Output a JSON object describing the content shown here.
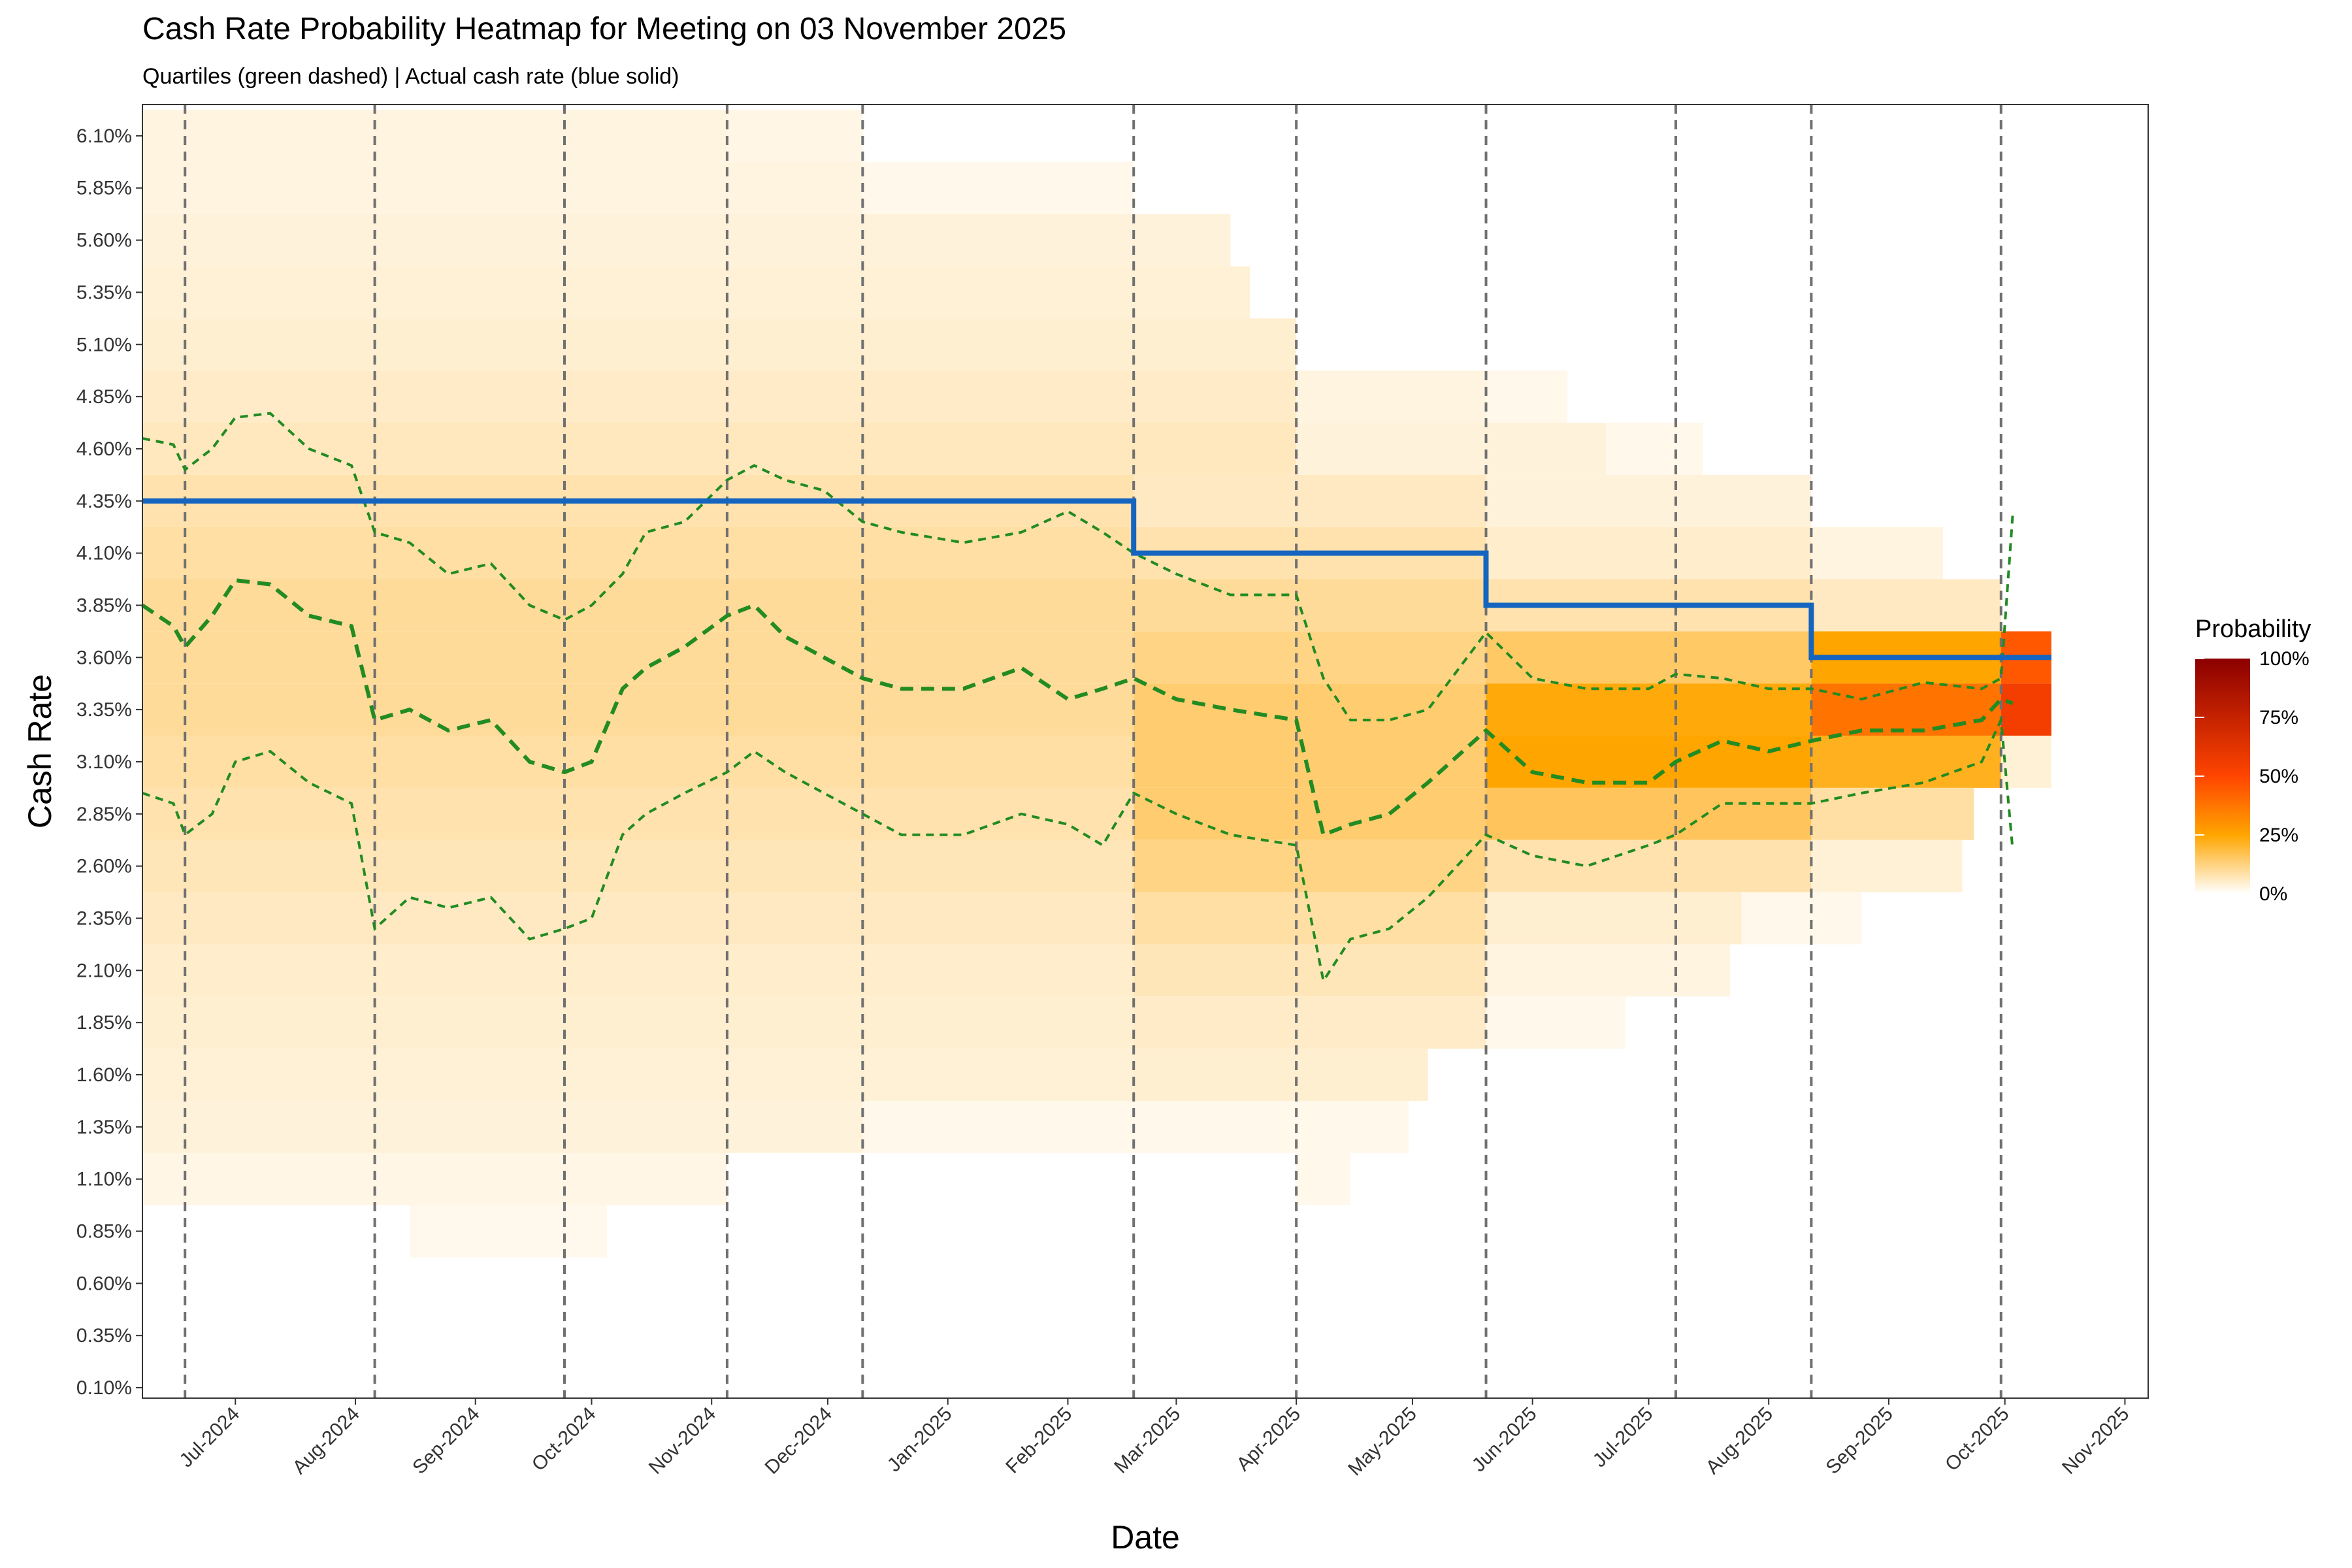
{
  "chart_data": {
    "type": "heatmap",
    "title": "Cash Rate Probability Heatmap for Meeting on 03 November 2025",
    "subtitle": "Quartiles (green dashed) | Actual cash rate (blue solid)",
    "xlabel": "Date",
    "ylabel": "Cash Rate",
    "x_range": [
      "2024-06-07",
      "2025-11-07"
    ],
    "y_range": [
      0.05,
      6.25
    ],
    "y_ticks": [
      "0.10%",
      "0.35%",
      "0.60%",
      "0.85%",
      "1.10%",
      "1.35%",
      "1.60%",
      "1.85%",
      "2.10%",
      "2.35%",
      "2.60%",
      "2.85%",
      "3.10%",
      "3.35%",
      "3.60%",
      "3.85%",
      "4.10%",
      "4.35%",
      "4.60%",
      "4.85%",
      "5.10%",
      "5.35%",
      "5.60%",
      "5.85%",
      "6.10%"
    ],
    "y_tick_values": [
      0.1,
      0.35,
      0.6,
      0.85,
      1.1,
      1.35,
      1.6,
      1.85,
      2.1,
      2.35,
      2.6,
      2.85,
      3.1,
      3.35,
      3.6,
      3.85,
      4.1,
      4.35,
      4.6,
      4.85,
      5.1,
      5.35,
      5.6,
      5.85,
      6.1
    ],
    "x_ticks": [
      {
        "label": "Jul-2024",
        "date": "2024-07-01"
      },
      {
        "label": "Aug-2024",
        "date": "2024-08-01"
      },
      {
        "label": "Sep-2024",
        "date": "2024-09-01"
      },
      {
        "label": "Oct-2024",
        "date": "2024-10-01"
      },
      {
        "label": "Nov-2024",
        "date": "2024-11-01"
      },
      {
        "label": "Dec-2024",
        "date": "2024-12-01"
      },
      {
        "label": "Jan-2025",
        "date": "2025-01-01"
      },
      {
        "label": "Feb-2025",
        "date": "2025-02-01"
      },
      {
        "label": "Mar-2025",
        "date": "2025-03-01"
      },
      {
        "label": "Apr-2025",
        "date": "2025-04-01"
      },
      {
        "label": "May-2025",
        "date": "2025-05-01"
      },
      {
        "label": "Jun-2025",
        "date": "2025-06-01"
      },
      {
        "label": "Jul-2025",
        "date": "2025-07-01"
      },
      {
        "label": "Aug-2025",
        "date": "2025-08-01"
      },
      {
        "label": "Sep-2025",
        "date": "2025-09-01"
      },
      {
        "label": "Oct-2025",
        "date": "2025-10-01"
      },
      {
        "label": "Nov-2025",
        "date": "2025-11-01"
      }
    ],
    "meeting_dates": [
      "2024-06-18",
      "2024-08-06",
      "2024-09-24",
      "2024-11-05",
      "2024-12-10",
      "2025-02-18",
      "2025-04-01",
      "2025-05-20",
      "2025-07-08",
      "2025-08-12",
      "2025-09-30"
    ],
    "actual_cash_rate": {
      "name": "Actual cash rate",
      "color": "#1565C0",
      "steps": [
        {
          "date": "2024-06-07",
          "rate": 4.35
        },
        {
          "date": "2025-02-18",
          "rate": 4.1
        },
        {
          "date": "2025-05-20",
          "rate": 3.85
        },
        {
          "date": "2025-08-12",
          "rate": 3.6
        },
        {
          "date": "2025-10-03",
          "rate": 3.6
        }
      ]
    },
    "quartiles": {
      "color": "#228B22",
      "dates": [
        "2024-06-07",
        "2024-06-15",
        "2024-06-18",
        "2024-06-25",
        "2024-07-01",
        "2024-07-10",
        "2024-07-20",
        "2024-07-31",
        "2024-08-06",
        "2024-08-15",
        "2024-08-25",
        "2024-09-05",
        "2024-09-15",
        "2024-09-24",
        "2024-10-01",
        "2024-10-09",
        "2024-10-15",
        "2024-10-25",
        "2024-11-05",
        "2024-11-12",
        "2024-11-20",
        "2024-11-30",
        "2024-12-10",
        "2024-12-20",
        "2025-01-05",
        "2025-01-20",
        "2025-02-01",
        "2025-02-10",
        "2025-02-18",
        "2025-03-01",
        "2025-03-15",
        "2025-04-01",
        "2025-04-08",
        "2025-04-15",
        "2025-04-25",
        "2025-05-05",
        "2025-05-20",
        "2025-06-01",
        "2025-06-15",
        "2025-07-01",
        "2025-07-08",
        "2025-07-20",
        "2025-08-01",
        "2025-08-12",
        "2025-08-25",
        "2025-09-10",
        "2025-09-25",
        "2025-09-30",
        "2025-10-03"
      ],
      "upper": [
        4.65,
        4.62,
        4.5,
        4.6,
        4.75,
        4.77,
        4.6,
        4.52,
        4.2,
        4.15,
        4.0,
        4.05,
        3.85,
        3.78,
        3.85,
        4.0,
        4.2,
        4.25,
        4.45,
        4.52,
        4.45,
        4.4,
        4.25,
        4.2,
        4.15,
        4.2,
        4.3,
        4.2,
        4.1,
        4.0,
        3.9,
        3.9,
        3.5,
        3.3,
        3.3,
        3.35,
        3.72,
        3.5,
        3.45,
        3.45,
        3.52,
        3.5,
        3.45,
        3.45,
        3.4,
        3.48,
        3.45,
        3.5,
        4.28
      ],
      "median": [
        3.85,
        3.75,
        3.65,
        3.8,
        3.97,
        3.95,
        3.8,
        3.75,
        3.3,
        3.35,
        3.25,
        3.3,
        3.1,
        3.05,
        3.1,
        3.45,
        3.55,
        3.65,
        3.8,
        3.85,
        3.7,
        3.6,
        3.5,
        3.45,
        3.45,
        3.55,
        3.4,
        3.45,
        3.5,
        3.4,
        3.35,
        3.3,
        2.75,
        2.8,
        2.85,
        3.0,
        3.25,
        3.05,
        3.0,
        3.0,
        3.1,
        3.2,
        3.15,
        3.2,
        3.25,
        3.25,
        3.3,
        3.4,
        3.38
      ],
      "lower": [
        2.95,
        2.9,
        2.75,
        2.85,
        3.1,
        3.15,
        3.0,
        2.9,
        2.3,
        2.45,
        2.4,
        2.45,
        2.25,
        2.3,
        2.35,
        2.75,
        2.85,
        2.95,
        3.05,
        3.15,
        3.05,
        2.95,
        2.85,
        2.75,
        2.75,
        2.85,
        2.8,
        2.7,
        2.95,
        2.85,
        2.75,
        2.7,
        2.05,
        2.25,
        2.3,
        2.45,
        2.75,
        2.65,
        2.6,
        2.7,
        2.75,
        2.9,
        2.9,
        2.9,
        2.95,
        3.0,
        3.1,
        3.3,
        2.68
      ]
    },
    "heatmap_rows": [
      {
        "rate": 6.1,
        "ranges": [
          {
            "start": "2024-06-07",
            "end": "2024-11-05",
            "p": 0.03
          },
          {
            "start": "2024-11-05",
            "end": "2024-12-10",
            "p": 0.025
          }
        ]
      },
      {
        "rate": 5.85,
        "ranges": [
          {
            "start": "2024-06-07",
            "end": "2024-12-10",
            "p": 0.03
          },
          {
            "start": "2024-12-10",
            "end": "2025-02-18",
            "p": 0.02
          }
        ]
      },
      {
        "rate": 5.6,
        "ranges": [
          {
            "start": "2024-06-07",
            "end": "2025-03-15",
            "p": 0.035
          }
        ]
      },
      {
        "rate": 5.35,
        "ranges": [
          {
            "start": "2024-06-07",
            "end": "2025-03-20",
            "p": 0.04
          }
        ]
      },
      {
        "rate": 5.1,
        "ranges": [
          {
            "start": "2024-06-07",
            "end": "2025-04-01",
            "p": 0.045
          }
        ]
      },
      {
        "rate": 4.85,
        "ranges": [
          {
            "start": "2024-06-07",
            "end": "2025-04-01",
            "p": 0.055
          },
          {
            "start": "2025-04-01",
            "end": "2025-05-20",
            "p": 0.03
          },
          {
            "start": "2025-05-20",
            "end": "2025-06-10",
            "p": 0.02
          }
        ]
      },
      {
        "rate": 4.6,
        "ranges": [
          {
            "start": "2024-06-07",
            "end": "2025-04-01",
            "p": 0.065
          },
          {
            "start": "2025-04-01",
            "end": "2025-06-20",
            "p": 0.035
          },
          {
            "start": "2025-06-20",
            "end": "2025-07-15",
            "p": 0.02
          }
        ]
      },
      {
        "rate": 4.35,
        "ranges": [
          {
            "start": "2024-06-07",
            "end": "2025-02-18",
            "p": 0.08
          },
          {
            "start": "2025-02-18",
            "end": "2025-05-20",
            "p": 0.06
          },
          {
            "start": "2025-05-20",
            "end": "2025-08-12",
            "p": 0.035
          }
        ]
      },
      {
        "rate": 4.1,
        "ranges": [
          {
            "start": "2024-06-07",
            "end": "2025-02-18",
            "p": 0.09
          },
          {
            "start": "2025-02-18",
            "end": "2025-05-20",
            "p": 0.08
          },
          {
            "start": "2025-05-20",
            "end": "2025-08-12",
            "p": 0.05
          },
          {
            "start": "2025-08-12",
            "end": "2025-09-15",
            "p": 0.03
          }
        ]
      },
      {
        "rate": 3.85,
        "ranges": [
          {
            "start": "2024-06-07",
            "end": "2025-02-18",
            "p": 0.1
          },
          {
            "start": "2025-02-18",
            "end": "2025-05-20",
            "p": 0.1
          },
          {
            "start": "2025-05-20",
            "end": "2025-08-12",
            "p": 0.08
          },
          {
            "start": "2025-08-12",
            "end": "2025-09-30",
            "p": 0.06
          }
        ]
      },
      {
        "rate": 3.6,
        "ranges": [
          {
            "start": "2024-06-07",
            "end": "2025-02-18",
            "p": 0.1
          },
          {
            "start": "2025-02-18",
            "end": "2025-05-20",
            "p": 0.12
          },
          {
            "start": "2025-05-20",
            "end": "2025-08-12",
            "p": 0.15
          },
          {
            "start": "2025-08-12",
            "end": "2025-09-30",
            "p": 0.25
          },
          {
            "start": "2025-09-30",
            "end": "2025-10-13",
            "p": 0.45
          }
        ]
      },
      {
        "rate": 3.35,
        "ranges": [
          {
            "start": "2024-06-07",
            "end": "2025-02-18",
            "p": 0.1
          },
          {
            "start": "2025-02-18",
            "end": "2025-05-20",
            "p": 0.14
          },
          {
            "start": "2025-05-20",
            "end": "2025-08-12",
            "p": 0.24
          },
          {
            "start": "2025-08-12",
            "end": "2025-09-30",
            "p": 0.38
          },
          {
            "start": "2025-09-30",
            "end": "2025-10-13",
            "p": 0.55
          }
        ]
      },
      {
        "rate": 3.1,
        "ranges": [
          {
            "start": "2024-06-07",
            "end": "2025-02-18",
            "p": 0.09
          },
          {
            "start": "2025-02-18",
            "end": "2025-05-20",
            "p": 0.14
          },
          {
            "start": "2025-05-20",
            "end": "2025-08-12",
            "p": 0.25
          },
          {
            "start": "2025-08-12",
            "end": "2025-09-30",
            "p": 0.22
          },
          {
            "start": "2025-09-30",
            "end": "2025-10-13",
            "p": 0.04
          }
        ]
      },
      {
        "rate": 2.85,
        "ranges": [
          {
            "start": "2024-06-07",
            "end": "2025-02-18",
            "p": 0.08
          },
          {
            "start": "2025-02-18",
            "end": "2025-05-20",
            "p": 0.14
          },
          {
            "start": "2025-05-20",
            "end": "2025-08-12",
            "p": 0.16
          },
          {
            "start": "2025-08-12",
            "end": "2025-09-23",
            "p": 0.09
          }
        ]
      },
      {
        "rate": 2.6,
        "ranges": [
          {
            "start": "2024-06-07",
            "end": "2025-02-18",
            "p": 0.07
          },
          {
            "start": "2025-02-18",
            "end": "2025-05-20",
            "p": 0.12
          },
          {
            "start": "2025-05-20",
            "end": "2025-08-12",
            "p": 0.08
          },
          {
            "start": "2025-08-12",
            "end": "2025-09-20",
            "p": 0.04
          }
        ]
      },
      {
        "rate": 2.35,
        "ranges": [
          {
            "start": "2024-06-07",
            "end": "2025-02-18",
            "p": 0.06
          },
          {
            "start": "2025-02-18",
            "end": "2025-05-20",
            "p": 0.09
          },
          {
            "start": "2025-05-20",
            "end": "2025-07-25",
            "p": 0.045
          },
          {
            "start": "2025-07-25",
            "end": "2025-08-25",
            "p": 0.02
          }
        ]
      },
      {
        "rate": 2.1,
        "ranges": [
          {
            "start": "2024-06-07",
            "end": "2025-02-18",
            "p": 0.05
          },
          {
            "start": "2025-02-18",
            "end": "2025-05-20",
            "p": 0.07
          },
          {
            "start": "2025-05-20",
            "end": "2025-07-22",
            "p": 0.03
          }
        ]
      },
      {
        "rate": 1.85,
        "ranges": [
          {
            "start": "2024-06-07",
            "end": "2025-02-18",
            "p": 0.045
          },
          {
            "start": "2025-02-18",
            "end": "2025-05-20",
            "p": 0.055
          },
          {
            "start": "2025-05-20",
            "end": "2025-06-25",
            "p": 0.02
          }
        ]
      },
      {
        "rate": 1.6,
        "ranges": [
          {
            "start": "2024-06-07",
            "end": "2025-02-18",
            "p": 0.04
          },
          {
            "start": "2025-02-18",
            "end": "2025-05-05",
            "p": 0.045
          }
        ]
      },
      {
        "rate": 1.35,
        "ranges": [
          {
            "start": "2024-06-07",
            "end": "2024-12-10",
            "p": 0.035
          },
          {
            "start": "2024-12-10",
            "end": "2025-04-30",
            "p": 0.02
          }
        ]
      },
      {
        "rate": 1.1,
        "ranges": [
          {
            "start": "2024-06-07",
            "end": "2024-11-05",
            "p": 0.025
          },
          {
            "start": "2025-04-01",
            "end": "2025-04-15",
            "p": 0.02
          }
        ]
      },
      {
        "rate": 0.85,
        "ranges": [
          {
            "start": "2024-08-15",
            "end": "2024-10-05",
            "p": 0.018
          }
        ]
      }
    ],
    "legend": {
      "title": "Probability",
      "labels": [
        "100%",
        "75%",
        "50%",
        "25%",
        "0%"
      ],
      "placement": "right",
      "colors": [
        "#ffffff",
        "#ffa500",
        "#ff4500",
        "#8b0000"
      ]
    },
    "grid": false
  }
}
